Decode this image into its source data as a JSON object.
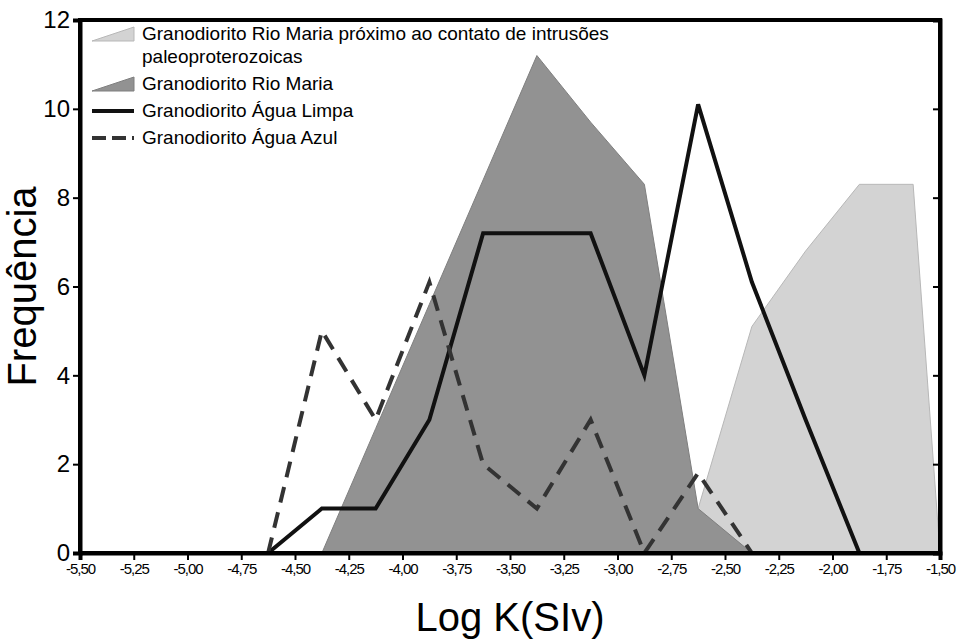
{
  "chart_data": {
    "type": "line",
    "x_label": "Log K(SIv)",
    "y_label": "Frequência",
    "xlim": [
      -5.5,
      -1.5
    ],
    "ylim": [
      0,
      12
    ],
    "xticks": [
      {
        "value": -5.5,
        "label": "-5,50"
      },
      {
        "value": -5.25,
        "label": "-5,25"
      },
      {
        "value": -5.0,
        "label": "-5,00"
      },
      {
        "value": -4.75,
        "label": "-4,75"
      },
      {
        "value": -4.5,
        "label": "-4,50"
      },
      {
        "value": -4.25,
        "label": "-4,25"
      },
      {
        "value": -4.0,
        "label": "-4,00"
      },
      {
        "value": -3.75,
        "label": "-3,75"
      },
      {
        "value": -3.5,
        "label": "-3,50"
      },
      {
        "value": -3.25,
        "label": "-3,25"
      },
      {
        "value": -3.0,
        "label": "-3,00"
      },
      {
        "value": -2.75,
        "label": "-2,75"
      },
      {
        "value": -2.5,
        "label": "-2,50"
      },
      {
        "value": -2.25,
        "label": "-2,25"
      },
      {
        "value": -2.0,
        "label": "-2,00"
      },
      {
        "value": -1.75,
        "label": "-1,75"
      },
      {
        "value": -1.5,
        "label": "-1,50"
      }
    ],
    "yticks": [
      0,
      2,
      4,
      6,
      8,
      10,
      12
    ],
    "legend": "upper left",
    "series": [
      {
        "name": "Granodiorito Rio Maria próximo ao contato de intrusões paleoproterozoicas",
        "type": "area",
        "color": "#d3d3d3",
        "x": [
          -2.875,
          -2.625,
          -2.375,
          -2.125,
          -1.875,
          -1.625,
          -1.5
        ],
        "values": [
          0,
          1,
          5.1,
          6.8,
          8.3,
          8.3,
          0
        ]
      },
      {
        "name": "Granodiorito Rio Maria",
        "type": "area",
        "color": "#929292",
        "x": [
          -4.375,
          -4.125,
          -3.875,
          -3.625,
          -3.375,
          -3.125,
          -2.875,
          -2.625,
          -2.375
        ],
        "values": [
          0,
          2.8,
          5.6,
          8.4,
          11.2,
          9.7,
          8.3,
          1,
          0
        ]
      },
      {
        "name": "Granodiorito Água Limpa",
        "type": "line",
        "color": "#111111",
        "line_style": "solid",
        "x": [
          -4.625,
          -4.375,
          -4.125,
          -3.875,
          -3.625,
          -3.375,
          -3.125,
          -2.875,
          -2.625,
          -2.375,
          -2.125,
          -1.875
        ],
        "values": [
          0,
          1,
          1,
          3,
          7.2,
          7.2,
          7.2,
          4,
          10.1,
          6.1,
          3,
          0
        ]
      },
      {
        "name": "Granodiorito Água Azul",
        "type": "line",
        "color": "#333333",
        "line_style": "dashed",
        "x": [
          -4.625,
          -4.375,
          -4.125,
          -3.875,
          -3.625,
          -3.375,
          -3.125,
          -2.875,
          -2.625,
          -2.375
        ],
        "values": [
          0,
          5,
          3,
          6.1,
          2,
          1,
          3,
          0,
          1.8,
          0
        ]
      }
    ]
  }
}
